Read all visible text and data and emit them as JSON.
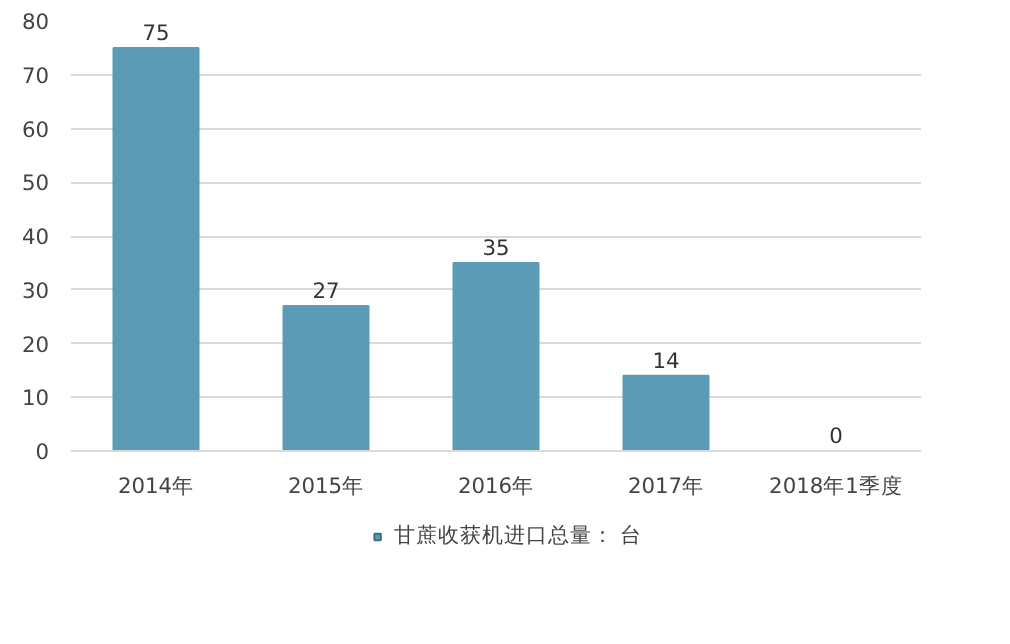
{
  "chart_data": {
    "type": "bar",
    "categories": [
      "2014年",
      "2015年",
      "2016年",
      "2017年",
      "2018年1季度"
    ],
    "series": [
      {
        "name": "甘蔗收获机进口总量： 台",
        "color": "#5b9bb5",
        "values": [
          75,
          27,
          35,
          14,
          0
        ]
      }
    ],
    "ylim": [
      0,
      80
    ],
    "yticks": [
      0,
      10,
      20,
      30,
      40,
      50,
      60,
      70,
      80
    ],
    "grid": "y",
    "legend": "bottom",
    "data_labels": true
  }
}
